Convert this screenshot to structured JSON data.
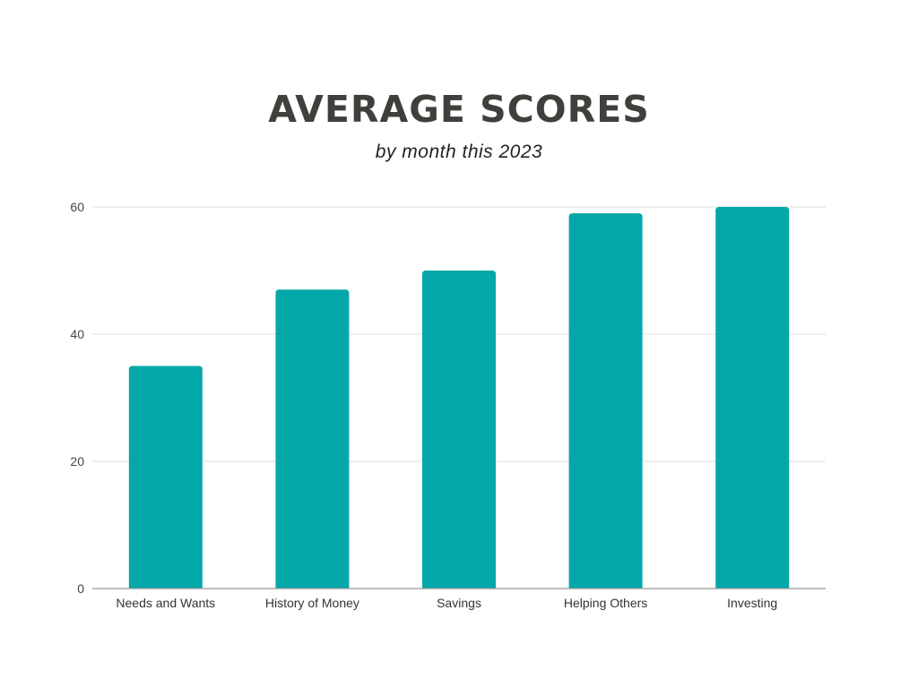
{
  "chart_data": {
    "type": "bar",
    "title": "AVERAGE SCORES",
    "subtitle": "by month this 2023",
    "xlabel": "",
    "ylabel": "",
    "categories": [
      "Needs and Wants",
      "History of Money",
      "Savings",
      "Helping Others",
      "Investing"
    ],
    "values": [
      35,
      47,
      50,
      59,
      60
    ],
    "ylim": [
      0,
      60
    ],
    "yticks": [
      0,
      20,
      40,
      60
    ],
    "grid": true,
    "legend": "none",
    "bar_color": "#05a8a8"
  }
}
